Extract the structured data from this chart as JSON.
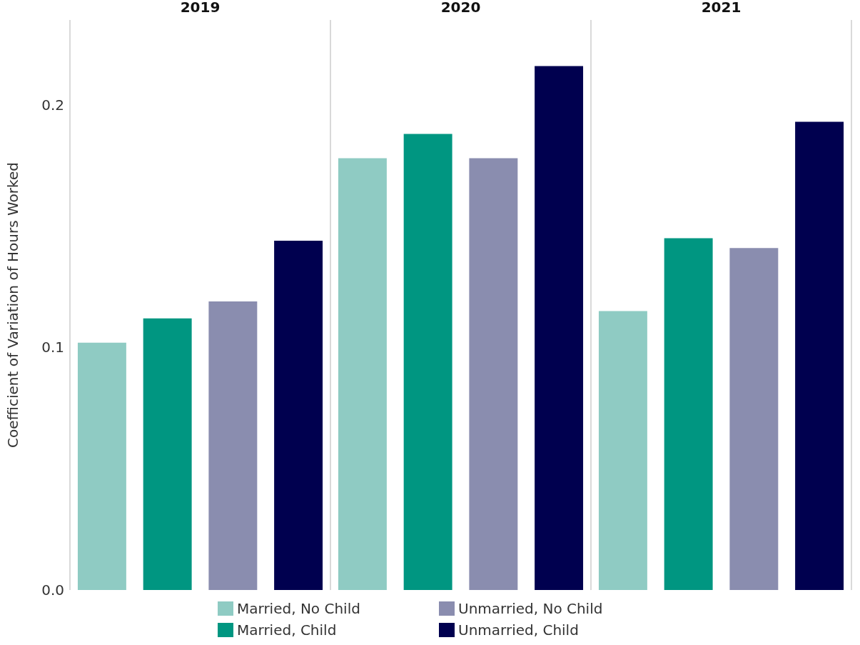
{
  "chart_data": {
    "type": "bar",
    "ylabel": "Coefficient of Variation of Hours Worked",
    "categories": [
      "2019",
      "2020",
      "2021"
    ],
    "series": [
      {
        "name": "Married, No Child",
        "color": "#8fcbc3",
        "values": [
          0.102,
          0.178,
          0.115
        ]
      },
      {
        "name": "Married, Child",
        "color": "#009681",
        "values": [
          0.112,
          0.188,
          0.145
        ]
      },
      {
        "name": "Unmarried, No Child",
        "color": "#8a8daf",
        "values": [
          0.119,
          0.178,
          0.141
        ]
      },
      {
        "name": "Unmarried, Child",
        "color": "#00004f",
        "values": [
          0.144,
          0.216,
          0.193
        ]
      }
    ],
    "ylim": [
      0,
      0.235
    ],
    "yticks": [
      {
        "value": 0,
        "label": "0.0"
      },
      {
        "value": 0.1,
        "label": "0.1"
      },
      {
        "value": 0.2,
        "label": "0.2"
      }
    ],
    "grid": "x",
    "legend": "bottom"
  }
}
